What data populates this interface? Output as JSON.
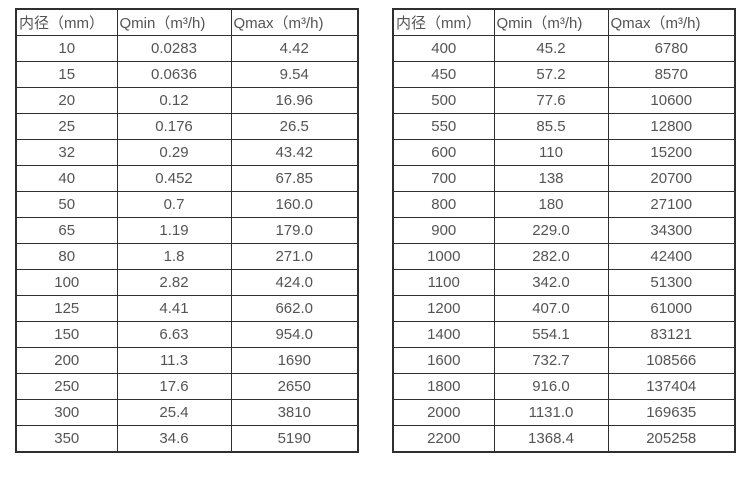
{
  "colors": {
    "border": "#2f2f2f",
    "text": "#545454",
    "background": "#ffffff"
  },
  "tables": [
    {
      "name": "flow-rate-table-small-diameters",
      "headers": [
        "内径（mm）",
        "Qmin（m³/h)",
        "Qmax（m³/h)"
      ],
      "rows": [
        [
          "10",
          "0.0283",
          "4.42"
        ],
        [
          "15",
          "0.0636",
          "9.54"
        ],
        [
          "20",
          "0.12",
          "16.96"
        ],
        [
          "25",
          "0.176",
          "26.5"
        ],
        [
          "32",
          "0.29",
          "43.42"
        ],
        [
          "40",
          "0.452",
          "67.85"
        ],
        [
          "50",
          "0.7",
          "160.0"
        ],
        [
          "65",
          "1.19",
          "179.0"
        ],
        [
          "80",
          "1.8",
          "271.0"
        ],
        [
          "100",
          "2.82",
          "424.0"
        ],
        [
          "125",
          "4.41",
          "662.0"
        ],
        [
          "150",
          "6.63",
          "954.0"
        ],
        [
          "200",
          "11.3",
          "1690"
        ],
        [
          "250",
          "17.6",
          "2650"
        ],
        [
          "300",
          "25.4",
          "3810"
        ],
        [
          "350",
          "34.6",
          "5190"
        ]
      ]
    },
    {
      "name": "flow-rate-table-large-diameters",
      "headers": [
        "内径（mm）",
        "Qmin（m³/h)",
        "Qmax（m³/h)"
      ],
      "rows": [
        [
          "400",
          "45.2",
          "6780"
        ],
        [
          "450",
          "57.2",
          "8570"
        ],
        [
          "500",
          "77.6",
          "10600"
        ],
        [
          "550",
          "85.5",
          "12800"
        ],
        [
          "600",
          "110",
          "15200"
        ],
        [
          "700",
          "138",
          "20700"
        ],
        [
          "800",
          "180",
          "27100"
        ],
        [
          "900",
          "229.0",
          "34300"
        ],
        [
          "1000",
          "282.0",
          "42400"
        ],
        [
          "1100",
          "342.0",
          "51300"
        ],
        [
          "1200",
          "407.0",
          "61000"
        ],
        [
          "1400",
          "554.1",
          "83121"
        ],
        [
          "1600",
          "732.7",
          "108566"
        ],
        [
          "1800",
          "916.0",
          "137404"
        ],
        [
          "2000",
          "1131.0",
          "169635"
        ],
        [
          "2200",
          "1368.4",
          "205258"
        ]
      ]
    }
  ]
}
